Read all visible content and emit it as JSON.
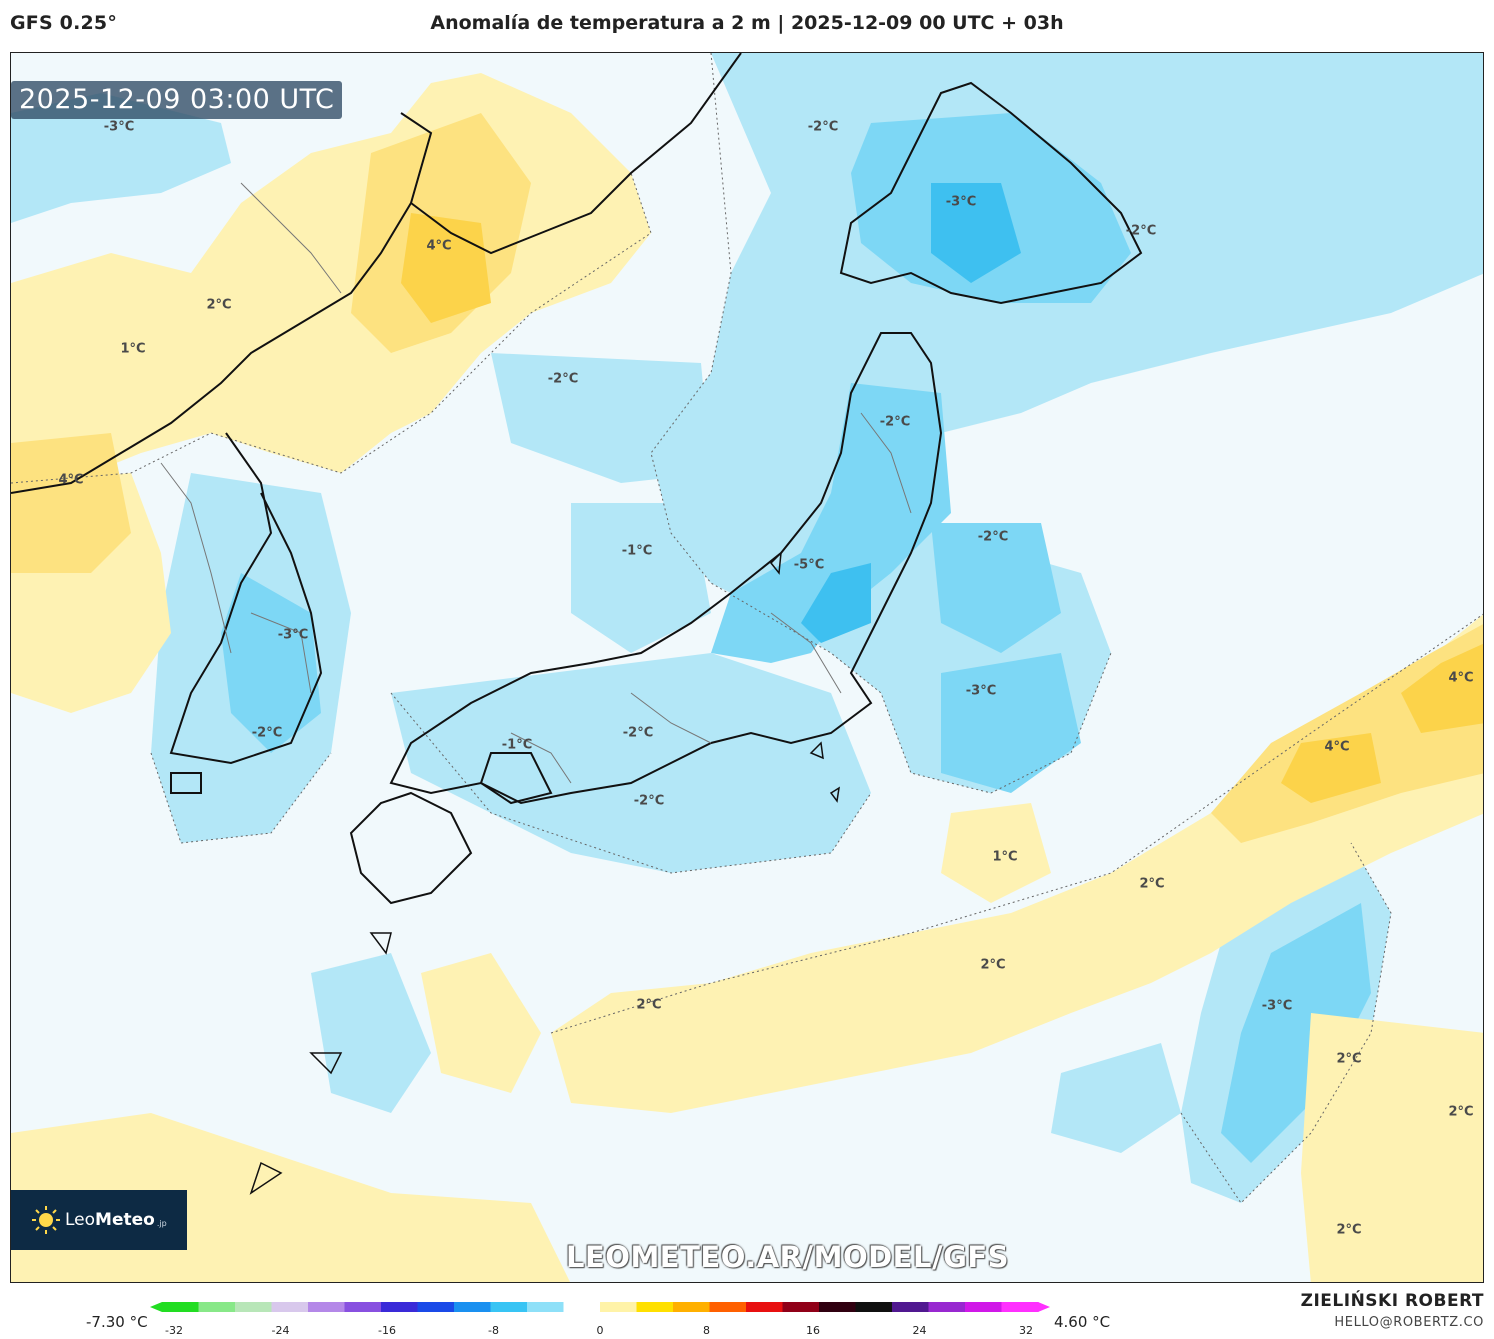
{
  "header": {
    "model": "GFS 0.25°",
    "title": "Anomalía de temperatura a 2 m | 2025-12-09 00 UTC + 03h"
  },
  "timestamp_badge": "2025-12-09 03:00 UTC",
  "watermark": "LEOMETEO.AR/MODEL/GFS",
  "logo": {
    "name_light": "Leo",
    "name_bold": "Meteo",
    "suffix": ".jp"
  },
  "labels": {
    "l1": "-3°C",
    "l2": "-2°C",
    "l3": "-3°C",
    "l4": "-2°C",
    "l5": "4°C",
    "l6": "2°C",
    "l7": "1°C",
    "l8": "-2°C",
    "l9": "-2°C",
    "l10": "4°C",
    "l11": "-1°C",
    "l12": "-2°C",
    "l13": "-5°C",
    "l14": "-3°C",
    "l15": "-3°C",
    "l16": "4°C",
    "l17": "4°C",
    "l18": "-2°C",
    "l19": "-1°C",
    "l20": "-2°C",
    "l21": "-2°C",
    "l22": "1°C",
    "l23": "2°C",
    "l24": "2°C",
    "l25": "2°C",
    "l26": "-3°C",
    "l27": "2°C",
    "l28": "2°C",
    "l29": "2°C"
  },
  "legend": {
    "min_label": "-7.30 °C",
    "max_label": "4.60 °C",
    "ticks": [
      "-32",
      "-24",
      "-16",
      "-8",
      "0",
      "8",
      "16",
      "24",
      "32"
    ],
    "range": [
      -32,
      32
    ],
    "colors": [
      "#22dd22",
      "#88e888",
      "#b8e6b8",
      "#d8c8ec",
      "#b488e8",
      "#8850e0",
      "#3a2ad8",
      "#1a4ae8",
      "#1a90f0",
      "#38c4f4",
      "#8ee0f8",
      "#ffffff",
      "#fff3a8",
      "#ffe000",
      "#ffb000",
      "#ff6000",
      "#e81010",
      "#900018",
      "#300010",
      "#101010",
      "#501890",
      "#9828d0",
      "#d018e8",
      "#ff30ff"
    ]
  },
  "credits": {
    "author": "ZIELIŃSKI ROBERT",
    "email": "HELLO@ROBERTZ.CO"
  },
  "map_colors": {
    "yellow_light": "#fef2b3",
    "yellow": "#fde280",
    "yellow_strong": "#fcd34a",
    "blue_light": "#b3e7f7",
    "blue": "#7dd7f5",
    "blue_strong": "#3ec0f0",
    "pale": "#eef8fb"
  }
}
